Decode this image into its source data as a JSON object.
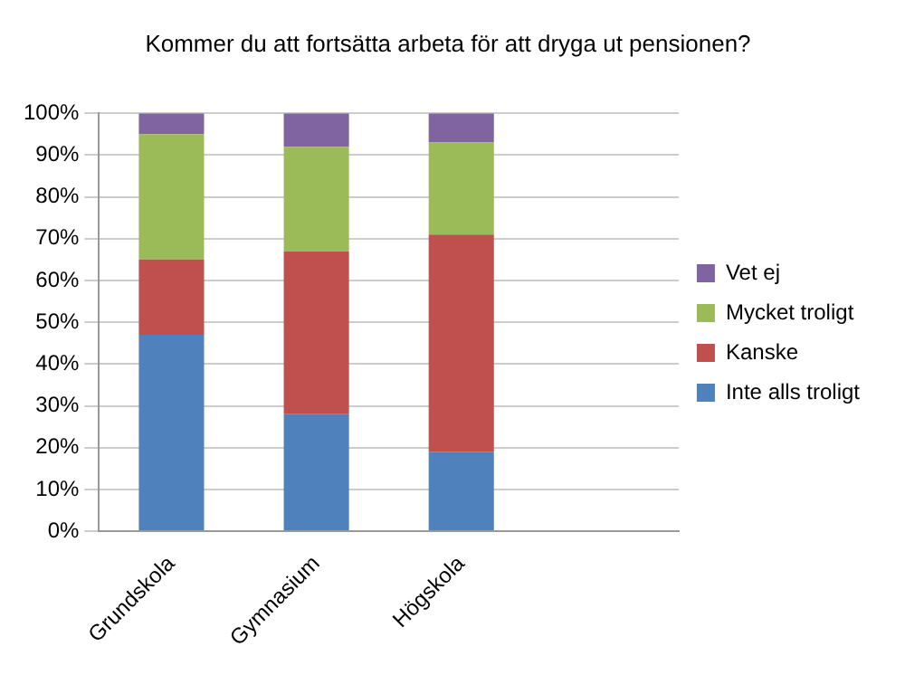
{
  "chart_data": {
    "type": "bar",
    "title": "Kommer du att fortsätta arbeta för att dryga ut pensionen?",
    "categories": [
      "Grundskola",
      "Gymnasium",
      "Högskola",
      null
    ],
    "stacked": true,
    "series": [
      {
        "name": "Inte alls troligt",
        "color": "#4f81bd",
        "values": [
          47,
          28,
          19,
          null
        ]
      },
      {
        "name": "Kanske",
        "color": "#c0504d",
        "values": [
          18,
          39,
          52,
          null
        ]
      },
      {
        "name": "Mycket troligt",
        "color": "#9bbb59",
        "values": [
          30,
          25,
          22,
          null
        ]
      },
      {
        "name": "Vet ej",
        "color": "#8064a2",
        "values": [
          5,
          8,
          7,
          null
        ]
      }
    ],
    "ylim": [
      0,
      100
    ],
    "yticks": [
      {
        "value": 0,
        "label": "0%"
      },
      {
        "value": 10,
        "label": "10%"
      },
      {
        "value": 20,
        "label": "20%"
      },
      {
        "value": 30,
        "label": "30%"
      },
      {
        "value": 40,
        "label": "40%"
      },
      {
        "value": 50,
        "label": "50%"
      },
      {
        "value": 60,
        "label": "60%"
      },
      {
        "value": 70,
        "label": "70%"
      },
      {
        "value": 80,
        "label": "80%"
      },
      {
        "value": 90,
        "label": "90%"
      },
      {
        "value": 100,
        "label": "100%"
      }
    ],
    "grid": "y",
    "legend": "right"
  }
}
